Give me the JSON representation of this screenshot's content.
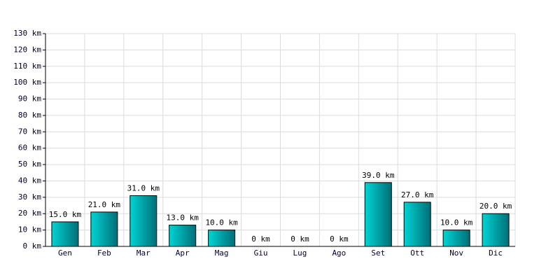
{
  "chart_data": {
    "type": "bar",
    "categories": [
      "Gen",
      "Feb",
      "Mar",
      "Apr",
      "Mag",
      "Giu",
      "Lug",
      "Ago",
      "Set",
      "Ott",
      "Nov",
      "Dic"
    ],
    "values": [
      15,
      21,
      31,
      13,
      10,
      0,
      0,
      0,
      39,
      27,
      10,
      20
    ],
    "value_labels": [
      "15.0 km",
      "21.0 km",
      "31.0 km",
      "13.0 km",
      "10.0 km",
      "0 km",
      "0 km",
      "0 km",
      "39.0 km",
      "27.0 km",
      "10.0 km",
      "20.0 km"
    ],
    "color": "#00d4d4",
    "ylim": [
      0,
      130
    ],
    "yticks": [
      {
        "value": 0,
        "label": "0 km"
      },
      {
        "value": 10,
        "label": "10 km"
      },
      {
        "value": 20,
        "label": "20 km"
      },
      {
        "value": 30,
        "label": "30 km"
      },
      {
        "value": 40,
        "label": "40 km"
      },
      {
        "value": 50,
        "label": "50 km"
      },
      {
        "value": 60,
        "label": "60 km"
      },
      {
        "value": 70,
        "label": "70 km"
      },
      {
        "value": 80,
        "label": "80 km"
      },
      {
        "value": 90,
        "label": "90 km"
      },
      {
        "value": 100,
        "label": "100 km"
      },
      {
        "value": 110,
        "label": "110 km"
      },
      {
        "value": 120,
        "label": "120 km"
      },
      {
        "value": 130,
        "label": "130 km"
      }
    ],
    "grid": true
  }
}
